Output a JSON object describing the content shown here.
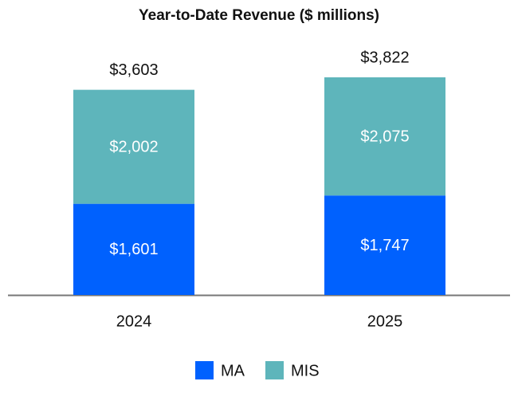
{
  "chart_data": {
    "type": "stacked-bar",
    "title": "Year-to-Date Revenue ($ millions)",
    "categories": [
      "2024",
      "2025"
    ],
    "series": [
      {
        "name": "MA",
        "color": "#0061fe",
        "values": [
          1601,
          1747
        ],
        "value_labels": [
          "$1,601",
          "$1,747"
        ]
      },
      {
        "name": "MIS",
        "color": "#5eb5bb",
        "values": [
          2002,
          2075
        ],
        "value_labels": [
          "$2,002",
          "$2,075"
        ]
      }
    ],
    "totals": [
      3603,
      3822
    ],
    "total_labels": [
      "$3,603",
      "$3,822"
    ]
  }
}
